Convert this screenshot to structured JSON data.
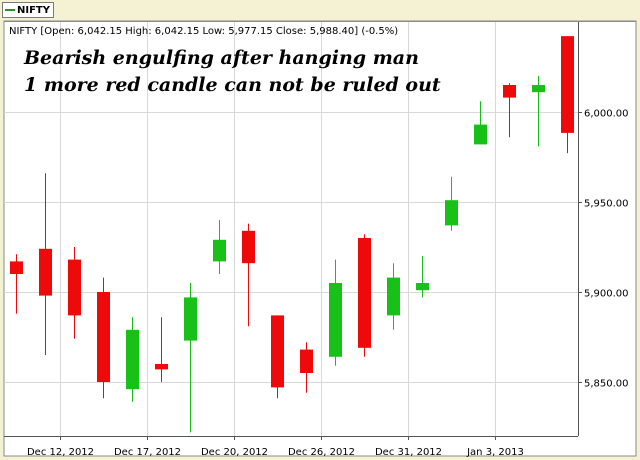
{
  "legend": {
    "label": "NIFTY",
    "color": "#1f9a1f"
  },
  "chart_data": {
    "type": "candlestick",
    "symbol": "NIFTY",
    "info_line": "NIFTY [Open: 6,042.15  High: 6,042.15  Low: 5,977.15  Close: 5,988.40] (-0.5%)",
    "annotation_lines": [
      "Bearish engulfing after hanging man",
      "1 more red candle can not be ruled out"
    ],
    "up_color": "#17c117",
    "down_color": "#ee0a0a",
    "ylim": [
      5820,
      6050
    ],
    "y_ticks": [
      5850,
      5900,
      5950,
      6000
    ],
    "y_tick_labels": [
      "5,850.00",
      "5,900.00",
      "5,950.00",
      "6,000.00"
    ],
    "x_tick_labels": [
      "Dec 12, 2012",
      "Dec 17, 2012",
      "Dec 20, 2012",
      "Dec 26, 2012",
      "Dec 31, 2012",
      "Jan 3, 2013"
    ],
    "x_tick_index": [
      1.5,
      4.5,
      7.5,
      10.5,
      13.5,
      16.5
    ],
    "grid": true,
    "candles": [
      {
        "open": 5917,
        "high": 5921,
        "low": 5888,
        "close": 5910
      },
      {
        "open": 5924,
        "high": 5966,
        "low": 5865,
        "close": 5898
      },
      {
        "open": 5918,
        "high": 5925,
        "low": 5874,
        "close": 5887
      },
      {
        "open": 5900,
        "high": 5908,
        "low": 5841,
        "close": 5850
      },
      {
        "open": 5846,
        "high": 5886,
        "low": 5839,
        "close": 5879
      },
      {
        "open": 5860,
        "high": 5886,
        "low": 5850,
        "close": 5857
      },
      {
        "open": 5873,
        "high": 5905,
        "low": 5822,
        "close": 5897
      },
      {
        "open": 5917,
        "high": 5940,
        "low": 5910,
        "close": 5929
      },
      {
        "open": 5934,
        "high": 5938,
        "low": 5881,
        "close": 5916
      },
      {
        "open": 5887,
        "high": 5887,
        "low": 5841,
        "close": 5847
      },
      {
        "open": 5868,
        "high": 5872,
        "low": 5844,
        "close": 5855
      },
      {
        "open": 5864,
        "high": 5918,
        "low": 5859,
        "close": 5905
      },
      {
        "open": 5930,
        "high": 5932,
        "low": 5864,
        "close": 5869
      },
      {
        "open": 5887,
        "high": 5916,
        "low": 5879,
        "close": 5908
      },
      {
        "open": 5901,
        "high": 5920,
        "low": 5897,
        "close": 5905
      },
      {
        "open": 5937,
        "high": 5964,
        "low": 5934,
        "close": 5951
      },
      {
        "open": 5982,
        "high": 6006,
        "low": 5982,
        "close": 5993
      },
      {
        "open": 6015,
        "high": 6016,
        "low": 5986,
        "close": 6008
      },
      {
        "open": 6011,
        "high": 6020,
        "low": 5981,
        "close": 6015
      },
      {
        "open": 6042.15,
        "high": 6042.15,
        "low": 5977.15,
        "close": 5988.4
      }
    ]
  }
}
